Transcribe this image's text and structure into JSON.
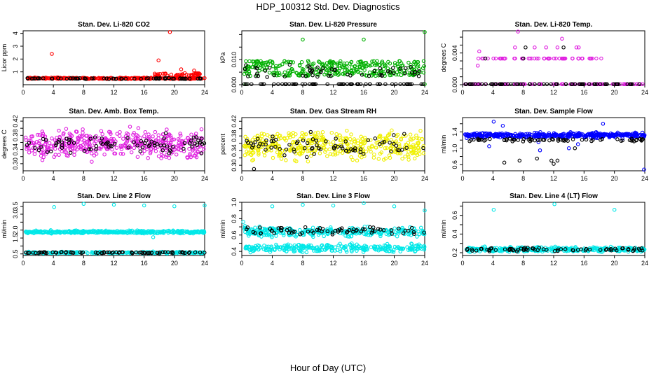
{
  "figure": {
    "title": "HDP_100312 Std. Dev. Diagnostics",
    "x_caption": "Hour of Day (UTC)"
  },
  "chart_data": [
    {
      "type": "scatter",
      "title": "Stan. Dev. Li-820 CO2",
      "ylabel": "Licor ppm",
      "xlim": [
        0,
        24
      ],
      "ylim": [
        0,
        4.2
      ],
      "xticks": [
        0,
        4,
        8,
        12,
        16,
        20,
        24
      ],
      "yticks": [
        1,
        2,
        3,
        4
      ],
      "ytick_labels": [
        "1",
        "2",
        "3",
        "4"
      ],
      "series": [
        {
          "name": "main",
          "color": "#ff0000",
          "base": 0.5,
          "spread": 0.08,
          "band": 0,
          "extra": 0.04,
          "extra_band": [
            0.6,
            1.2
          ],
          "extra_x": [
            17,
            24
          ],
          "count": 300,
          "outliers": [
            [
              3.8,
              2.4
            ],
            [
              19.4,
              4.1
            ],
            [
              17.9,
              1.9
            ],
            [
              20.9,
              1.2
            ],
            [
              22.6,
              1.1
            ]
          ]
        },
        {
          "name": "ref",
          "color": "#000000",
          "base": 0.48,
          "spread": 0.06,
          "band": 0,
          "count": 70,
          "outliers": []
        }
      ]
    },
    {
      "type": "scatter",
      "title": "Stan. Dev. Li-820 Pressure",
      "ylabel": "kPa",
      "xlim": [
        0,
        24
      ],
      "ylim": [
        0,
        0.0215
      ],
      "xticks": [
        0,
        4,
        8,
        12,
        16,
        20,
        24
      ],
      "yticks": [
        0,
        0.005,
        0.01,
        0.015,
        0.02
      ],
      "ytick_labels": [
        "0.000",
        "",
        "0.010",
        "",
        ""
      ],
      "series": [
        {
          "name": "main",
          "color": "#00b000",
          "base": 0.0,
          "spread": 0.0,
          "band": [
            0.0035,
            0.0095
          ],
          "count": 320,
          "outliers": [
            [
              8,
              0.018
            ],
            [
              16,
              0.018
            ],
            [
              24,
              0.021
            ],
            [
              0.5,
              0.0
            ],
            [
              24,
              0.0
            ]
          ]
        },
        {
          "name": "ref",
          "color": "#000000",
          "base": 0.0,
          "spread": 0.0,
          "band": [
            0.003,
            0.008
          ],
          "count": 55,
          "outliers": []
        },
        {
          "name": "zero",
          "color": "#000000",
          "base": 0.0,
          "spread": 0.0,
          "band": 0,
          "count": 60,
          "outliers": []
        }
      ]
    },
    {
      "type": "scatter",
      "title": "Stan. Dev. Li-820 Temp.",
      "ylabel": "degrees C",
      "xlim": [
        0,
        24
      ],
      "ylim": [
        0,
        0.0068
      ],
      "xticks": [
        0,
        4,
        8,
        12,
        16,
        20,
        24
      ],
      "yticks": [
        0,
        0.001,
        0.002,
        0.003,
        0.004,
        0.005,
        0.006
      ],
      "ytick_labels": [
        "0.000",
        "",
        "",
        "",
        "0.004",
        "",
        ""
      ],
      "series": [
        {
          "name": "main",
          "color": "#e020e0",
          "base": 0.0033,
          "spread": 0.0,
          "band": 0,
          "count": 60,
          "x_range": [
            2,
            18.5
          ],
          "outliers": [
            [
              7.3,
              0.0067
            ],
            [
              13.1,
              0.0058
            ],
            [
              2.2,
              0.0042
            ],
            [
              2.0,
              0.0024
            ],
            [
              9.5,
              0.0047
            ],
            [
              11,
              0.0047
            ],
            [
              15,
              0.0047
            ],
            [
              15.3,
              0.0047
            ],
            [
              6.9,
              0.0047
            ],
            [
              12.5,
              0.0047
            ]
          ]
        },
        {
          "name": "zero",
          "color": "#e020e0",
          "base": 0.0,
          "spread": 0.0,
          "band": 0,
          "count": 90,
          "outliers": []
        },
        {
          "name": "ref",
          "color": "#000000",
          "base": 0.0,
          "spread": 0.0,
          "band": 0,
          "count": 70,
          "outliers": [
            [
              3.0,
              0.0033
            ],
            [
              8.3,
              0.0047
            ],
            [
              13.3,
              0.0047
            ],
            [
              8.0,
              0.0033
            ]
          ]
        }
      ]
    },
    {
      "type": "scatter",
      "title": "Stan. Dev. Amb. Box Temp.",
      "ylabel": "degrees C",
      "xlim": [
        0,
        24
      ],
      "ylim": [
        0.28,
        0.43
      ],
      "xticks": [
        0,
        4,
        8,
        12,
        16,
        20,
        24
      ],
      "yticks": [
        0.3,
        0.32,
        0.34,
        0.36,
        0.38,
        0.4,
        0.42
      ],
      "ytick_labels": [
        "0.30",
        "",
        "0.34",
        "",
        "0.38",
        "",
        "0.42"
      ],
      "series": [
        {
          "name": "main",
          "color": "#e020e0",
          "base": 0.355,
          "spread": 0.055,
          "band": 0,
          "count": 420,
          "outliers": []
        },
        {
          "name": "ref",
          "color": "#000000",
          "base": 0.355,
          "spread": 0.035,
          "band": 0,
          "count": 80,
          "outliers": []
        }
      ]
    },
    {
      "type": "scatter",
      "title": "Stan. Dev. Gas Stream RH",
      "ylabel": "percent",
      "xlim": [
        0,
        24
      ],
      "ylim": [
        0.285,
        0.43
      ],
      "xticks": [
        0,
        4,
        8,
        12,
        16,
        20,
        24
      ],
      "yticks": [
        0.3,
        0.32,
        0.34,
        0.36,
        0.38,
        0.4,
        0.42
      ],
      "ytick_labels": [
        "0.30",
        "",
        "0.34",
        "",
        "0.38",
        "",
        "0.42"
      ],
      "series": [
        {
          "name": "main",
          "color": "#f0f000",
          "base": 0.355,
          "spread": 0.055,
          "band": 0,
          "count": 420,
          "outliers": []
        },
        {
          "name": "ref",
          "color": "#000000",
          "base": 0.355,
          "spread": 0.04,
          "band": 0,
          "count": 75,
          "outliers": [
            [
              1.6,
              0.29
            ]
          ]
        }
      ]
    },
    {
      "type": "scatter",
      "title": "Stan. Dev. Sample Flow",
      "ylabel": "ml/min",
      "xlim": [
        0,
        24
      ],
      "ylim": [
        0.45,
        1.75
      ],
      "xticks": [
        0,
        4,
        8,
        12,
        16,
        20,
        24
      ],
      "yticks": [
        0.6,
        0.8,
        1.0,
        1.2,
        1.4,
        1.6
      ],
      "ytick_labels": [
        "0.6",
        "",
        "1.0",
        "",
        "1.4",
        ""
      ],
      "series": [
        {
          "name": "main",
          "color": "#0000ff",
          "base": 1.32,
          "spread": 0.09,
          "band": 0,
          "count": 420,
          "outliers": [
            [
              4.1,
              1.65
            ],
            [
              5.3,
              1.55
            ],
            [
              3.5,
              1.05
            ],
            [
              10.0,
              1.15
            ],
            [
              14.0,
              1.0
            ],
            [
              10.2,
              0.95
            ],
            [
              15.2,
              1.1
            ],
            [
              23.9,
              0.48
            ],
            [
              18.5,
              1.6
            ]
          ]
        },
        {
          "name": "ref",
          "color": "#000000",
          "base": 1.2,
          "spread": 0.05,
          "band": 0,
          "count": 70,
          "outliers": [
            [
              5.5,
              0.65
            ],
            [
              9.8,
              0.75
            ],
            [
              11.7,
              0.7
            ],
            [
              12.0,
              0.62
            ],
            [
              12.5,
              0.7
            ],
            [
              7.5,
              0.7
            ],
            [
              14.8,
              1.0
            ]
          ]
        }
      ]
    },
    {
      "type": "scatter",
      "title": "Stan. Dev. Line 2 Flow",
      "ylabel": "ml/min",
      "xlim": [
        0,
        24
      ],
      "ylim": [
        0.4,
        3.75
      ],
      "xticks": [
        0,
        4,
        8,
        12,
        16,
        20,
        24
      ],
      "yticks": [
        0.5,
        1.0,
        1.5,
        2.0,
        2.5,
        3.0,
        3.5
      ],
      "ytick_labels": [
        "0.5",
        "",
        "1.5",
        "2.0",
        "",
        "3.0",
        "3.5"
      ],
      "series": [
        {
          "name": "main",
          "color": "#00e8e8",
          "base": 1.88,
          "spread": 0.12,
          "band": 0,
          "count": 360,
          "outliers": [
            [
              4.1,
              3.45
            ],
            [
              8.0,
              3.65
            ],
            [
              12.0,
              3.6
            ],
            [
              16.0,
              3.55
            ],
            [
              20.0,
              3.5
            ],
            [
              24.0,
              3.55
            ],
            [
              17.2,
              1.55
            ]
          ]
        },
        {
          "name": "low",
          "color": "#00e8e8",
          "base": 0.58,
          "spread": 0.08,
          "band": 0,
          "count": 220,
          "outliers": []
        },
        {
          "name": "ref",
          "color": "#000000",
          "base": 0.58,
          "spread": 0.06,
          "band": 0,
          "count": 80,
          "outliers": []
        }
      ]
    },
    {
      "type": "scatter",
      "title": "Stan. Dev. Line 3 Flow",
      "ylabel": "ml/min",
      "xlim": [
        0,
        24
      ],
      "ylim": [
        0.35,
        1.0
      ],
      "xticks": [
        0,
        4,
        8,
        12,
        16,
        20,
        24
      ],
      "yticks": [
        0.4,
        0.5,
        0.6,
        0.7,
        0.8,
        0.9,
        1.0
      ],
      "ytick_labels": [
        "0.4",
        "",
        "0.6",
        "",
        "0.8",
        "",
        "1.0"
      ],
      "series": [
        {
          "name": "main",
          "color": "#00e8e8",
          "base": 0.64,
          "spread": 0.09,
          "band": 0,
          "count": 300,
          "outliers": [
            [
              4.0,
              0.95
            ],
            [
              8.0,
              0.97
            ],
            [
              12.0,
              0.96
            ],
            [
              16.0,
              0.99
            ],
            [
              20.0,
              0.95
            ],
            [
              24.0,
              0.9
            ],
            [
              0.2,
              0.76
            ]
          ]
        },
        {
          "name": "low",
          "color": "#00e8e8",
          "base": 0.44,
          "spread": 0.07,
          "band": 0,
          "count": 280,
          "outliers": []
        },
        {
          "name": "ref",
          "color": "#000000",
          "base": 0.65,
          "spread": 0.06,
          "band": 0,
          "count": 70,
          "outliers": []
        }
      ]
    },
    {
      "type": "scatter",
      "title": "Stan. Dev. Line 4 (LT) Flow",
      "ylabel": "ml/min",
      "xlim": [
        0,
        24
      ],
      "ylim": [
        0.17,
        0.74
      ],
      "xticks": [
        0,
        4,
        8,
        12,
        16,
        20,
        24
      ],
      "yticks": [
        0.2,
        0.3,
        0.4,
        0.5,
        0.6,
        0.7
      ],
      "ytick_labels": [
        "0.2",
        "",
        "0.4",
        "",
        "0.6",
        ""
      ],
      "series": [
        {
          "name": "main",
          "color": "#00e8e8",
          "base": 0.235,
          "spread": 0.035,
          "band": 0,
          "count": 360,
          "outliers": [
            [
              4.1,
              0.66
            ],
            [
              12.1,
              0.72
            ],
            [
              20.0,
              0.66
            ]
          ]
        },
        {
          "name": "ref",
          "color": "#000000",
          "base": 0.235,
          "spread": 0.03,
          "band": 0,
          "count": 70,
          "outliers": []
        }
      ]
    }
  ]
}
